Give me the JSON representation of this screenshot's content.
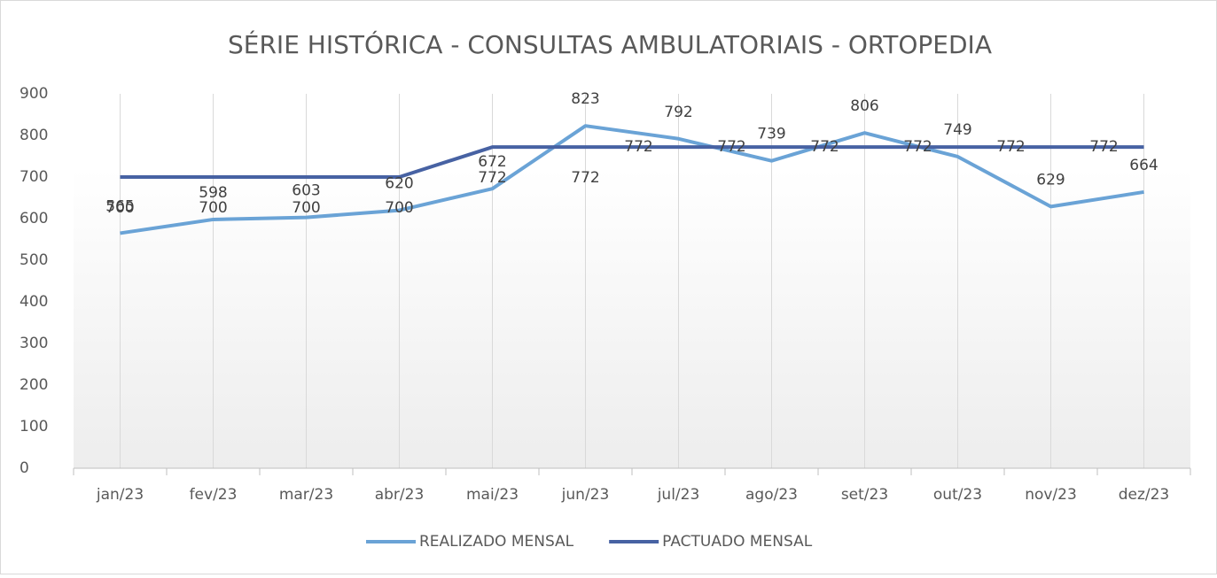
{
  "chart_data": {
    "type": "line",
    "title": "SÉRIE HISTÓRICA - CONSULTAS AMBULATORIAIS - ORTOPEDIA",
    "categories": [
      "jan/23",
      "fev/23",
      "mar/23",
      "abr/23",
      "mai/23",
      "jun/23",
      "jul/23",
      "ago/23",
      "set/23",
      "out/23",
      "nov/23",
      "dez/23"
    ],
    "series": [
      {
        "name": "REALIZADO MENSAL",
        "color": "#6aa3d6",
        "values": [
          565,
          598,
          603,
          620,
          672,
          823,
          792,
          739,
          806,
          749,
          629,
          664
        ]
      },
      {
        "name": "PACTUADO MENSAL",
        "color": "#4762a3",
        "values": [
          700,
          700,
          700,
          700,
          772,
          772,
          772,
          772,
          772,
          772,
          772,
          772
        ]
      }
    ],
    "ylim": [
      0,
      900
    ],
    "yticks": [
      0,
      100,
      200,
      300,
      400,
      500,
      600,
      700,
      800,
      900
    ],
    "xgrid": true,
    "legend": "bottom"
  }
}
